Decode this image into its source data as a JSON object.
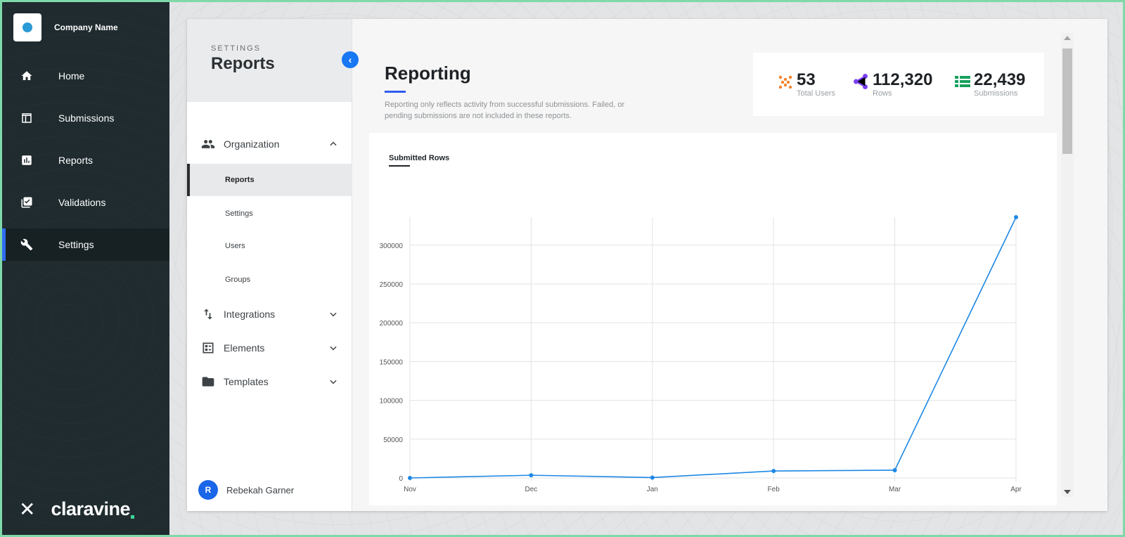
{
  "company": {
    "name": "Company Name"
  },
  "nav": {
    "items": [
      {
        "label": "Home",
        "icon": "home-icon"
      },
      {
        "label": "Submissions",
        "icon": "table-icon"
      },
      {
        "label": "Reports",
        "icon": "bar-chart-icon"
      },
      {
        "label": "Validations",
        "icon": "checklist-icon"
      },
      {
        "label": "Settings",
        "icon": "wrench-icon",
        "active": true
      }
    ],
    "brand": "claravine"
  },
  "subnav": {
    "kicker": "SETTINGS",
    "title": "Reports",
    "groups": [
      {
        "label": "Organization",
        "icon": "people-icon",
        "expanded": true
      },
      {
        "label": "Integrations",
        "icon": "sort-arrows-icon",
        "expanded": false
      },
      {
        "label": "Elements",
        "icon": "list-box-icon",
        "expanded": false
      },
      {
        "label": "Templates",
        "icon": "folder-icon",
        "expanded": false
      }
    ],
    "org_items": [
      {
        "label": "Reports",
        "active": true
      },
      {
        "label": "Settings"
      },
      {
        "label": "Users"
      },
      {
        "label": "Groups"
      }
    ],
    "user": {
      "initial": "R",
      "name": "Rebekah Garner"
    }
  },
  "reporting": {
    "title": "Reporting",
    "description": "Reporting only reflects activity from successful submissions. Failed, or pending submissions are not included in these reports."
  },
  "stats": [
    {
      "value": "53",
      "label": "Total Users",
      "color": "#f5822a",
      "icon": "dots-icon"
    },
    {
      "value": "112,320",
      "label": "Rows",
      "color": "#7b3ff2",
      "icon": "share-icon"
    },
    {
      "value": "22,439",
      "label": "Submissions",
      "color": "#17a05d",
      "icon": "table-list-icon"
    }
  ],
  "chart": {
    "tab_label": "Submitted Rows"
  },
  "chart_data": {
    "type": "line",
    "title": "Submitted Rows",
    "categories": [
      "Nov",
      "Dec",
      "Jan",
      "Feb",
      "Mar",
      "Apr"
    ],
    "series": [
      {
        "values": [
          0,
          3500,
          500,
          9000,
          10000,
          336000
        ]
      }
    ],
    "yticks": [
      0,
      50000,
      100000,
      150000,
      200000,
      250000,
      300000
    ],
    "ylim": [
      0,
      336000
    ],
    "grid": true,
    "line_color": "#1e88e5"
  }
}
